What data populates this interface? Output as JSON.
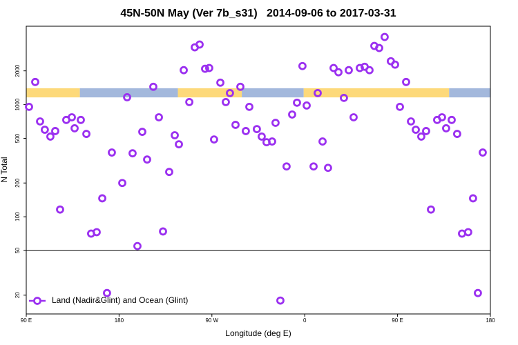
{
  "chart_data": {
    "type": "scatter",
    "title": "45N-50N May (Ver 7b_s31)   2014-09-06 to 2017-03-31",
    "x_label": "Longitude (deg E)",
    "y_label": "N Total",
    "xlim": [
      90,
      540
    ],
    "xticks": [
      {
        "value": 90,
        "label": "90 E"
      },
      180,
      {
        "value": 270,
        "label": "90 W"
      },
      {
        "value": 360,
        "label": "0"
      },
      {
        "value": 450,
        "label": "90 E"
      },
      {
        "value": 540,
        "label": "180"
      }
    ],
    "ylim": [
      13.6,
      5000
    ],
    "log_y": true,
    "yticks": [
      20,
      50,
      100,
      200,
      500,
      1000,
      2000
    ],
    "hline": 50,
    "legend": "bottom-left",
    "surface_band": {
      "ylim": [
        1160,
        1400
      ],
      "segments": [
        {
          "xlim": [
            90,
            142
          ],
          "color": "#fdd97a"
        },
        {
          "xlim": [
            142,
            237
          ],
          "color": "#a3b8dc"
        },
        {
          "xlim": [
            237,
            299
          ],
          "color": "#fdd97a"
        },
        {
          "xlim": [
            299,
            359
          ],
          "color": "#a3b8dc"
        },
        {
          "xlim": [
            359,
            500
          ],
          "color": "#fdd97a"
        },
        {
          "xlim": [
            500,
            540
          ],
          "color": "#a3b8dc"
        }
      ]
    },
    "series": [
      {
        "name": "Land (Nadir&Glint) and Ocean (Glint)",
        "color": "#9b30f0",
        "x": [
          92.7,
          98.7,
          103.4,
          108,
          113.4,
          118.1,
          122.8,
          128.8,
          134.2,
          136.9,
          142.9,
          148.3,
          152.9,
          158.3,
          163.7,
          168.3,
          173,
          183.1,
          187.8,
          193.1,
          197.8,
          202.5,
          207.2,
          213.2,
          218.6,
          222.6,
          228.6,
          234,
          238,
          242.7,
          248.1,
          253.4,
          258.1,
          263.4,
          267.4,
          272.1,
          278.2,
          283.5,
          287.5,
          292.9,
          297.6,
          302.9,
          306.3,
          313.6,
          318.3,
          323,
          328.4,
          331.7,
          336.4,
          342.4,
          347.8,
          352.5,
          357.8,
          361.9,
          368.6,
          372.6,
          377.3,
          382.6,
          388,
          392.7,
          398,
          402.7,
          407.4,
          413.4,
          418.1,
          422.8,
          427.5,
          432.2,
          437.5,
          443.5,
          447.6,
          452.3,
          458.3,
          463,
          467.7,
          473,
          477.7,
          482.4,
          488.4,
          493.1,
          497.1,
          502.5,
          507.8,
          512.5,
          518.5,
          523.2,
          527.9,
          532.6
        ],
        "values": [
          955,
          1592,
          708,
          597,
          519,
          581,
          116,
          730,
          771,
          615,
          730,
          548,
          70.8,
          72.9,
          146,
          20.9,
          374,
          200,
          1164,
          368,
          54.8,
          572,
          324,
          1442,
          771,
          74,
          251,
          533,
          443,
          2028,
          1054,
          3241,
          3434,
          2088,
          2120,
          489,
          1570,
          1054,
          1267,
          660,
          1442,
          581,
          955,
          605,
          519,
          462,
          469,
          688,
          17.9,
          281,
          816,
          1040,
          2207,
          982,
          281,
          1267,
          469,
          273,
          2120,
          1944,
          1148,
          2028,
          771,
          2120,
          2176,
          2028,
          3337,
          3198,
          4010,
          2437,
          2273,
          955,
          1592,
          708,
          597,
          519,
          581,
          116,
          730,
          771,
          615,
          730,
          548,
          70.8,
          72.9,
          146,
          20.9,
          374
        ]
      }
    ]
  }
}
